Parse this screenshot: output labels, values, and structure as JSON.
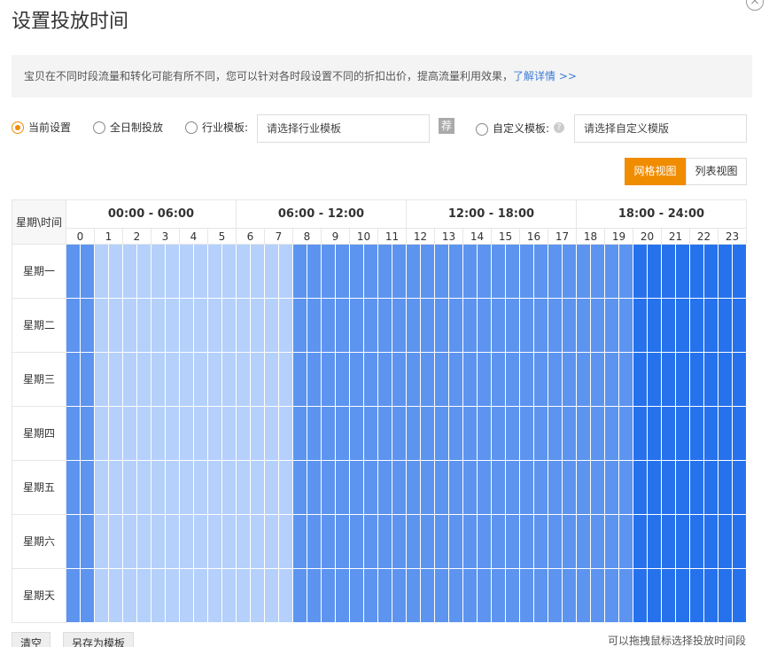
{
  "header": {
    "title": "设置投放时间"
  },
  "notice": {
    "text": "宝贝在不同时段流量和转化可能有所不同，您可以针对各时段设置不同的折扣出价，提高流量利用效果，",
    "link": "了解详情 >>"
  },
  "options": {
    "current": "当前设置",
    "all_day": "全日制投放",
    "industry": "行业模板:",
    "industry_placeholder": "请选择行业模板",
    "recommend": "荐",
    "custom": "自定义模板:",
    "help": "?",
    "custom_placeholder": "请选择自定义模版"
  },
  "views": [
    "网格视图",
    "列表视图"
  ],
  "table": {
    "corner": "星期\\时间",
    "groups": [
      "00:00 - 06:00",
      "06:00 - 12:00",
      "12:00 - 18:00",
      "18:00 - 24:00"
    ],
    "hours": [
      0,
      1,
      2,
      3,
      4,
      5,
      6,
      7,
      8,
      9,
      10,
      11,
      12,
      13,
      14,
      15,
      16,
      17,
      18,
      19,
      20,
      21,
      22,
      23
    ],
    "days": [
      "星期一",
      "星期二",
      "星期三",
      "星期四",
      "星期五",
      "星期六",
      "星期天"
    ],
    "hour_colors": [
      "#5d94ef",
      "#b4d0fb",
      "#b4d0fb",
      "#b4d0fb",
      "#b4d0fb",
      "#b4d0fb",
      "#b4d0fb",
      "#b4d0fb",
      "#5d94ef",
      "#5d94ef",
      "#5d94ef",
      "#5d94ef",
      "#5d94ef",
      "#5d94ef",
      "#5d94ef",
      "#5d94ef",
      "#5d94ef",
      "#5d94ef",
      "#5d94ef",
      "#5d94ef",
      "#2672ec",
      "#2672ec",
      "#2672ec",
      "#2672ec"
    ]
  },
  "footer": {
    "buttons": [
      "清空",
      "另存为模板"
    ],
    "hint": "可以拖拽鼠标选择投放时间段"
  }
}
